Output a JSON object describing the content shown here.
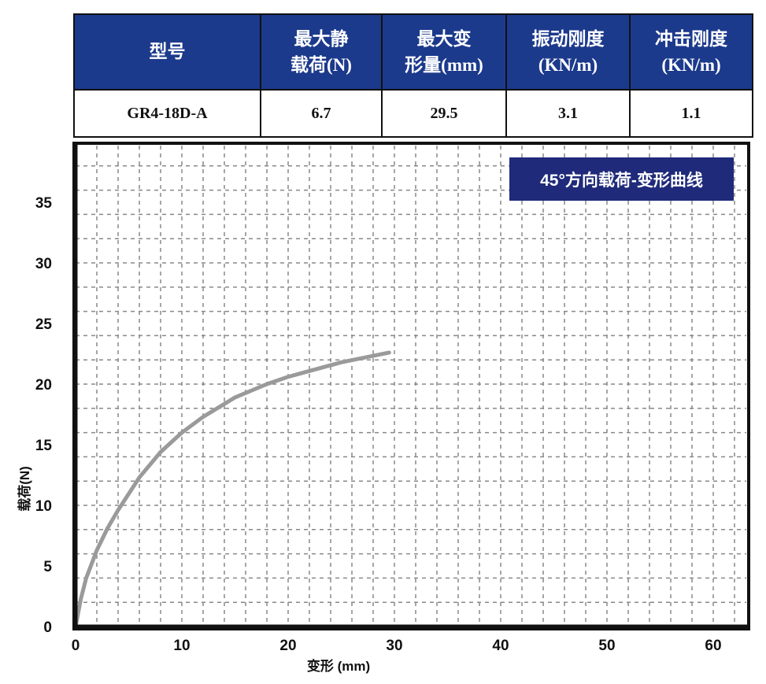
{
  "table": {
    "headers": [
      [
        "型号"
      ],
      [
        "最大静",
        "载荷(N)"
      ],
      [
        "最大变",
        "形量(mm)"
      ],
      [
        "振动刚度",
        "(KN/m)"
      ],
      [
        "冲击刚度",
        "(KN/m)"
      ]
    ],
    "row": [
      "GR4-18D-A",
      "6.7",
      "29.5",
      "3.1",
      "1.1"
    ],
    "header_color": "#1c3a8c"
  },
  "chart_data": {
    "type": "line",
    "title": "45°方向载荷-变形曲线",
    "xlabel": "变形 (mm)",
    "ylabel": "载荷(N)",
    "xlim": [
      0,
      63
    ],
    "ylim": [
      0,
      39.8
    ],
    "xticks": [
      "0",
      "10",
      "20",
      "30",
      "40",
      "50",
      "60"
    ],
    "yticks": [
      "0",
      "5",
      "10",
      "15",
      "20",
      "25",
      "30",
      "35"
    ],
    "grid": true,
    "series": [
      {
        "color": "#9a9a9a",
        "x": [
          0,
          0.5,
          1,
          2,
          3,
          4,
          6,
          8,
          10,
          12,
          15,
          18,
          20,
          25,
          29.5
        ],
        "y": [
          0,
          2.3,
          4,
          6.3,
          8.1,
          9.6,
          12.3,
          14.4,
          16,
          17.3,
          18.9,
          20,
          20.6,
          21.8,
          22.6
        ]
      }
    ],
    "title_box_color": "#1f2a7a"
  }
}
